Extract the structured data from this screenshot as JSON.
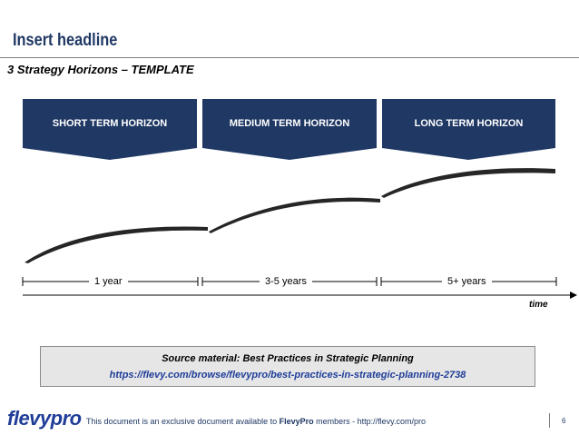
{
  "headline": "Insert headline",
  "subtitle": "3 Strategy Horizons – TEMPLATE",
  "horizons": [
    {
      "label": "SHORT TERM HORIZON",
      "timeframe": "1 year"
    },
    {
      "label": "MEDIUM TERM HORIZON",
      "timeframe": "3-5 years"
    },
    {
      "label": "LONG TERM HORIZON",
      "timeframe": "5+ years"
    }
  ],
  "time_axis_label": "time",
  "source": {
    "line": "Source material:  Best Practices in Strategic Planning",
    "url": "https://flevy.com/browse/flevypro/best-practices-in-strategic-planning-2738"
  },
  "footer": {
    "logo": "flevypro",
    "text_prefix": "This document is an exclusive document available to ",
    "text_brand": "FlevyPro",
    "text_suffix": " members - http://flevy.com/pro",
    "page_number": "6"
  },
  "colors": {
    "navy": "#1f3864",
    "link_blue": "#1f3d99",
    "source_bg": "#e6e6e6"
  }
}
